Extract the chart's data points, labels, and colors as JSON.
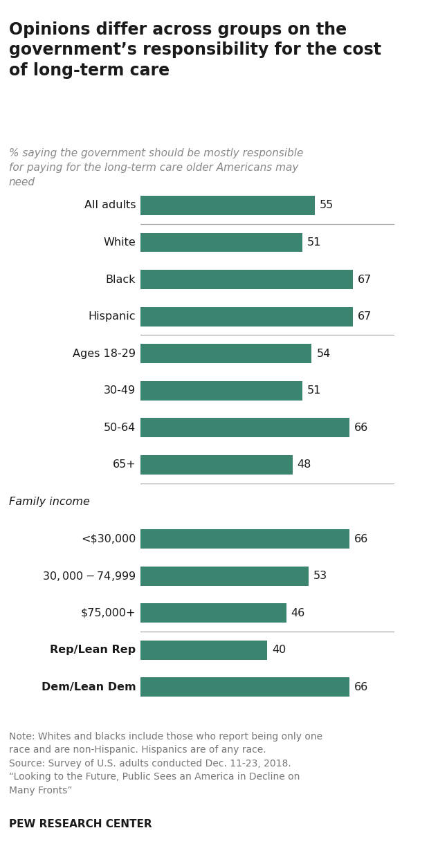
{
  "title": "Opinions differ across groups on the\ngovernment’s responsibility for the cost\nof long-term care",
  "subtitle": "% saying the government should be mostly responsible\nfor paying for the long-term care older Americans may\nneed",
  "categories": [
    "All adults",
    "White",
    "Black",
    "Hispanic",
    "Ages 18-29",
    "30-49",
    "50-64",
    "65+",
    "FAMILY_INCOME_LABEL",
    "<$30,000",
    "$30,000-$74,999",
    "$75,000+",
    "Rep/Lean Rep",
    "Dem/Lean Dem"
  ],
  "values": [
    55,
    51,
    67,
    67,
    54,
    51,
    66,
    48,
    null,
    66,
    53,
    46,
    40,
    66
  ],
  "bar_color": "#3a8470",
  "background_color": "#ffffff",
  "note_line1": "Note: Whites and blacks include those who report being only one",
  "note_line2": "race and are non-Hispanic. Hispanics are of any race.",
  "note_line3": "Source: Survey of U.S. adults conducted Dec. 11-23, 2018.",
  "note_line4": "“Looking to the Future, Public Sees an America in Decline on",
  "note_line5": "Many Fronts”",
  "source_label": "PEW RESEARCH CENTER",
  "xlim_max": 80,
  "bold_categories": [
    "Rep/Lean Rep",
    "Dem/Lean Dem"
  ],
  "separator_after_indices": [
    0,
    3,
    7,
    11
  ]
}
